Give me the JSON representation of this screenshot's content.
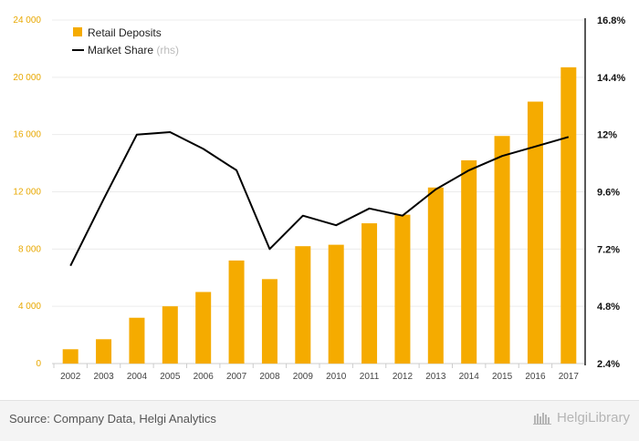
{
  "chart_data": {
    "type": "bar",
    "categories": [
      "2002",
      "2003",
      "2004",
      "2005",
      "2006",
      "2007",
      "2008",
      "2009",
      "2010",
      "2011",
      "2012",
      "2013",
      "2014",
      "2015",
      "2016",
      "2017"
    ],
    "series": [
      {
        "name": "Retail Deposits",
        "type": "bar",
        "axis": "left",
        "color": "#f5ab00",
        "values": [
          1000,
          1700,
          3200,
          4000,
          5000,
          7200,
          5900,
          8200,
          8300,
          9800,
          10400,
          12300,
          14200,
          15900,
          18300,
          20700
        ]
      },
      {
        "name": "Market Share",
        "type": "line",
        "axis": "right",
        "color": "#000000",
        "values": [
          6.5,
          9.3,
          12.0,
          12.1,
          11.4,
          10.5,
          7.2,
          8.6,
          8.2,
          8.9,
          8.6,
          9.7,
          10.5,
          11.1,
          11.5,
          11.9
        ]
      }
    ],
    "yaxis_left": {
      "ylim": [
        0,
        24000
      ],
      "ticks": [
        "0",
        "4 000",
        "8 000",
        "12 000",
        "16 000",
        "20 000",
        "24 000"
      ]
    },
    "yaxis_right": {
      "ylim": [
        2.4,
        16.8
      ],
      "ticks": [
        "2.4%",
        "4.8%",
        "7.2%",
        "9.6%",
        "12%",
        "14.4%",
        "16.8%"
      ]
    },
    "legend": {
      "position": "top-left",
      "items": [
        {
          "label": "Retail Deposits",
          "suffix": ""
        },
        {
          "label": "Market Share",
          "suffix": "(rhs)"
        }
      ]
    },
    "grid": true
  },
  "footer": {
    "source": "Source: Company Data, Helgi Analytics",
    "logo_text": "HelgiLibrary"
  },
  "colors": {
    "bar": "#f5ab00",
    "line": "#000000",
    "left_ticks": "#e8a800"
  }
}
